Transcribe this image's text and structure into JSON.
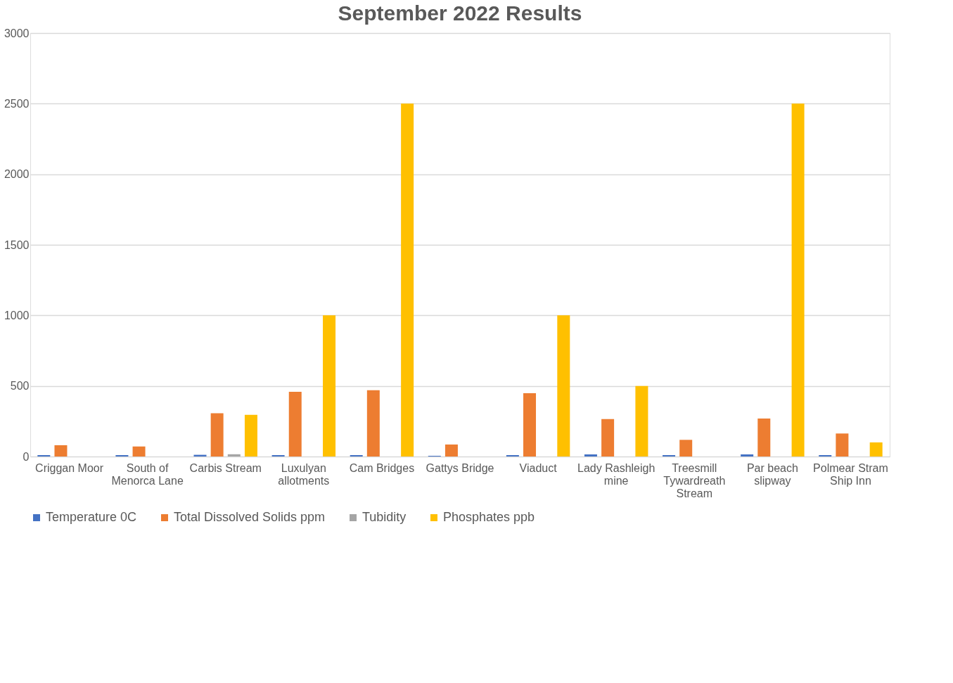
{
  "chart_data": {
    "type": "bar",
    "title": "September 2022 Results",
    "categories": [
      "Criggan Moor",
      "South of Menorca Lane",
      "Carbis Stream",
      "Luxulyan allotments",
      "Cam Bridges",
      "Gattys Bridge",
      "Viaduct",
      "Lady Rashleigh mine",
      "Treesmill Tywardreath Stream",
      "Par beach slipway",
      "Polmear Stram Ship Inn"
    ],
    "series": [
      {
        "name": "Temperature 0C",
        "color": "#4472c4",
        "values": [
          10,
          10,
          12,
          10,
          10,
          5,
          10,
          15,
          10,
          15,
          10
        ]
      },
      {
        "name": "Total Dissolved Solids ppm",
        "color": "#ed7d31",
        "values": [
          80,
          71,
          307,
          458,
          470,
          85,
          448,
          265,
          118,
          269,
          163
        ]
      },
      {
        "name": "Tubidity",
        "color": "#a5a5a5",
        "values": [
          null,
          null,
          16,
          null,
          null,
          null,
          null,
          null,
          null,
          null,
          null
        ]
      },
      {
        "name": "Phosphates ppb",
        "color": "#ffc000",
        "values": [
          null,
          null,
          295,
          1000,
          2500,
          null,
          1000,
          500,
          null,
          2500,
          100
        ]
      }
    ],
    "ylim": [
      0,
      3000
    ],
    "yticks": [
      0,
      500,
      1000,
      1500,
      2000,
      2500,
      3000
    ],
    "grid": "y",
    "legend": "bottom"
  }
}
